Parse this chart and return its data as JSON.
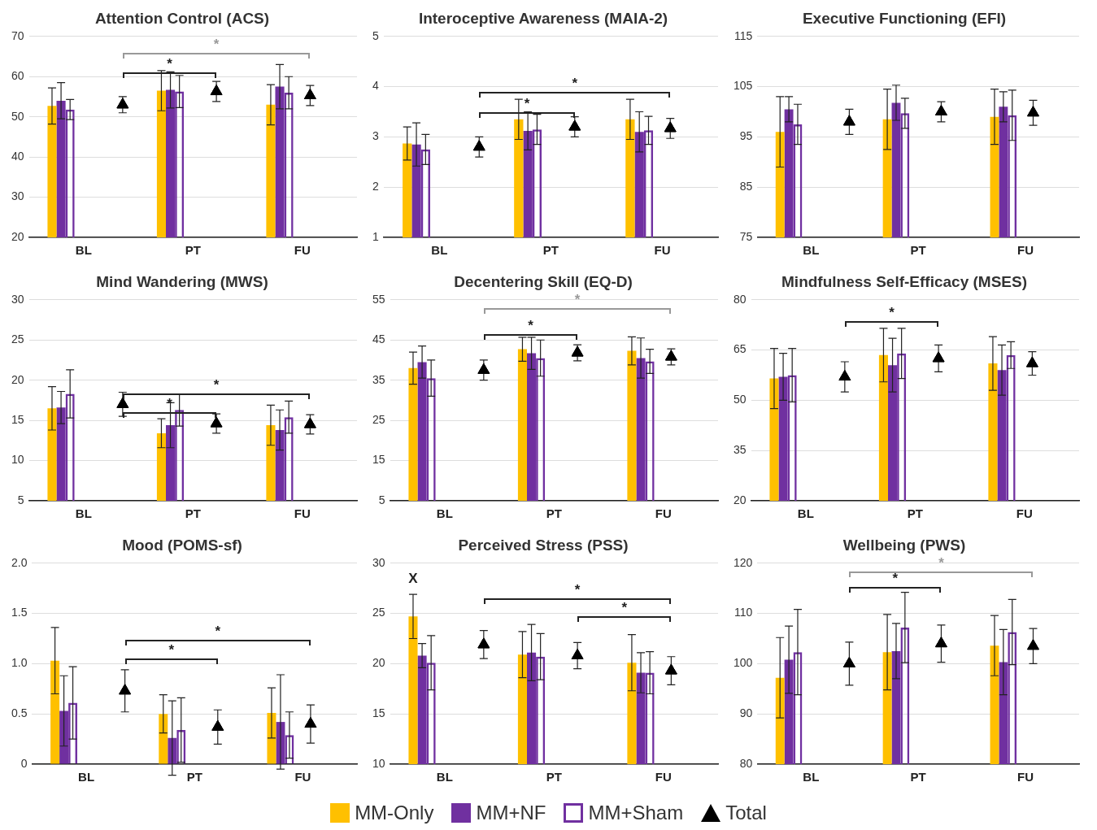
{
  "chart_data": [
    {
      "type": "bar",
      "title": "Attention Control (ACS)",
      "categories": [
        "BL",
        "PT",
        "FU"
      ],
      "ylim": [
        20,
        70
      ],
      "yticks": [
        20,
        30,
        40,
        50,
        60,
        70
      ],
      "grid": "y",
      "series": [
        {
          "color": "#ffc000",
          "values": [
            52.7,
            56.5,
            53
          ],
          "errors": [
            4.5,
            5,
            5
          ]
        },
        {
          "color": "#7030a0",
          "values": [
            54,
            56.7,
            57.5
          ],
          "errors": [
            4.5,
            4.5,
            5.5
          ]
        },
        {
          "color": "#7030a0",
          "values": [
            51.8,
            56.3,
            56
          ],
          "errors": [
            2.5,
            4,
            4
          ]
        },
        {
          "type": "scatter",
          "marker": "triangle",
          "color": "#000000",
          "values": [
            53,
            56.3,
            55.3
          ],
          "errors": [
            2,
            2.5,
            2.5
          ]
        }
      ],
      "annotations": [
        "*",
        "*"
      ]
    },
    {
      "type": "bar",
      "title": "Interoceptive Awareness (MAIA-2)",
      "categories": [
        "BL",
        "PT",
        "FU"
      ],
      "ylim": [
        1,
        5
      ],
      "yticks": [
        1,
        2,
        3,
        4,
        5
      ],
      "grid": "y",
      "series": [
        {
          "color": "#ffc000",
          "values": [
            2.87,
            3.35,
            3.35
          ],
          "errors": [
            0.33,
            0.4,
            0.4
          ]
        },
        {
          "color": "#7030a0",
          "values": [
            2.85,
            3.12,
            3.1
          ],
          "errors": [
            0.43,
            0.38,
            0.4
          ]
        },
        {
          "color": "#7030a0",
          "values": [
            2.75,
            3.15,
            3.13
          ],
          "errors": [
            0.3,
            0.3,
            0.28
          ]
        },
        {
          "type": "scatter",
          "marker": "triangle",
          "color": "#000000",
          "values": [
            2.8,
            3.2,
            3.17
          ],
          "errors": [
            0.2,
            0.2,
            0.2
          ]
        }
      ],
      "annotations": [
        "*",
        "*"
      ]
    },
    {
      "type": "bar",
      "title": "Executive Functioning (EFI)",
      "categories": [
        "BL",
        "PT",
        "FU"
      ],
      "ylim": [
        75,
        115
      ],
      "yticks": [
        75,
        85,
        95,
        105,
        115
      ],
      "grid": "y",
      "series": [
        {
          "color": "#ffc000",
          "values": [
            96,
            98.5,
            99
          ],
          "errors": [
            7,
            6,
            5.5
          ]
        },
        {
          "color": "#7030a0",
          "values": [
            100.5,
            101.8,
            101
          ],
          "errors": [
            2.5,
            3.5,
            3
          ]
        },
        {
          "color": "#7030a0",
          "values": [
            97.5,
            99.7,
            99.3
          ],
          "errors": [
            4,
            3,
            5
          ]
        },
        {
          "type": "scatter",
          "marker": "triangle",
          "color": "#000000",
          "values": [
            98,
            100,
            99.8
          ],
          "errors": [
            2.5,
            2,
            2.5
          ]
        }
      ]
    },
    {
      "type": "bar",
      "title": "Mind Wandering (MWS)",
      "categories": [
        "BL",
        "PT",
        "FU"
      ],
      "ylim": [
        5,
        30
      ],
      "yticks": [
        5,
        10,
        15,
        20,
        25,
        30
      ],
      "grid": "y",
      "series": [
        {
          "color": "#ffc000",
          "values": [
            16.5,
            13.4,
            14.4
          ],
          "errors": [
            2.7,
            1.8,
            2.5
          ]
        },
        {
          "color": "#7030a0",
          "values": [
            16.6,
            14.4,
            13.8
          ],
          "errors": [
            2,
            2.8,
            2.5
          ]
        },
        {
          "color": "#7030a0",
          "values": [
            18.3,
            16.3,
            15.4
          ],
          "errors": [
            3,
            2,
            2
          ]
        },
        {
          "type": "scatter",
          "marker": "triangle",
          "color": "#000000",
          "values": [
            17,
            14.6,
            14.5
          ],
          "errors": [
            1.5,
            1.2,
            1.2
          ]
        }
      ],
      "annotations": [
        "*",
        "*"
      ]
    },
    {
      "type": "bar",
      "title": "Decentering Skill (EQ-D)",
      "categories": [
        "BL",
        "PT",
        "FU"
      ],
      "ylim": [
        5,
        55
      ],
      "yticks": [
        5,
        15,
        25,
        35,
        45,
        55
      ],
      "grid": "y",
      "series": [
        {
          "color": "#ffc000",
          "values": [
            38,
            42.7,
            42.3
          ],
          "errors": [
            4,
            3,
            3.5
          ]
        },
        {
          "color": "#7030a0",
          "values": [
            39.5,
            41.7,
            40.5
          ],
          "errors": [
            4,
            4,
            5
          ]
        },
        {
          "color": "#7030a0",
          "values": [
            35.5,
            40.5,
            39.7
          ],
          "errors": [
            4.5,
            4.5,
            3
          ]
        },
        {
          "type": "scatter",
          "marker": "triangle",
          "color": "#000000",
          "values": [
            37.5,
            41.8,
            40.8
          ],
          "errors": [
            2.5,
            2,
            2
          ]
        }
      ],
      "annotations": [
        "*",
        "*"
      ]
    },
    {
      "type": "bar",
      "title": "Mindfulness Self-Efficacy (MSES)",
      "categories": [
        "BL",
        "PT",
        "FU"
      ],
      "ylim": [
        20,
        80
      ],
      "yticks": [
        20,
        35,
        50,
        65,
        80
      ],
      "grid": "y",
      "series": [
        {
          "color": "#ffc000",
          "values": [
            56.5,
            63.5,
            61
          ],
          "errors": [
            9,
            8,
            8
          ]
        },
        {
          "color": "#7030a0",
          "values": [
            57,
            60.5,
            59
          ],
          "errors": [
            7,
            8,
            7.5
          ]
        },
        {
          "color": "#7030a0",
          "values": [
            57.5,
            64,
            63.5
          ],
          "errors": [
            8,
            7.5,
            4
          ]
        },
        {
          "type": "scatter",
          "marker": "triangle",
          "color": "#000000",
          "values": [
            57,
            62.5,
            61
          ],
          "errors": [
            4.5,
            4,
            3.5
          ]
        }
      ],
      "annotations": [
        "*"
      ]
    },
    {
      "type": "bar",
      "title": "Mood (POMS-sf)",
      "categories": [
        "BL",
        "PT",
        "FU"
      ],
      "ylim": [
        0,
        2
      ],
      "yticks": [
        0,
        0.5,
        {
          "value": 1,
          "label": "1.0"
        },
        1.5,
        {
          "value": 2,
          "label": "2.0"
        }
      ],
      "grid": "y",
      "series": [
        {
          "color": "#ffc000",
          "values": [
            1.03,
            0.5,
            0.51
          ],
          "errors": [
            0.33,
            0.19,
            0.25
          ]
        },
        {
          "color": "#7030a0",
          "values": [
            0.53,
            0.26,
            0.42
          ],
          "errors": [
            0.35,
            0.37,
            0.47
          ]
        },
        {
          "color": "#7030a0",
          "values": [
            0.61,
            0.34,
            0.29
          ],
          "errors": [
            0.36,
            0.32,
            0.23
          ]
        },
        {
          "type": "scatter",
          "marker": "triangle",
          "color": "#000000",
          "values": [
            0.73,
            0.37,
            0.4
          ],
          "errors": [
            0.21,
            0.17,
            0.19
          ]
        }
      ],
      "annotations": [
        "*",
        "*"
      ]
    },
    {
      "type": "bar",
      "title": "Perceived Stress (PSS)",
      "categories": [
        "BL",
        "PT",
        "FU"
      ],
      "ylim": [
        10,
        30
      ],
      "yticks": [
        10,
        15,
        20,
        25,
        30
      ],
      "grid": "y",
      "series": [
        {
          "color": "#ffc000",
          "values": [
            24.7,
            20.9,
            20.1
          ],
          "errors": [
            2.2,
            2.3,
            2.8
          ]
        },
        {
          "color": "#7030a0",
          "values": [
            20.8,
            21.1,
            19.1
          ],
          "errors": [
            1.2,
            2.8,
            2
          ]
        },
        {
          "color": "#7030a0",
          "values": [
            20.1,
            20.7,
            19.1
          ],
          "errors": [
            2.7,
            2.3,
            2.1
          ]
        },
        {
          "type": "scatter",
          "marker": "triangle",
          "color": "#000000",
          "values": [
            21.9,
            20.8,
            19.3
          ],
          "errors": [
            1.4,
            1.3,
            1.4
          ]
        }
      ],
      "annotations": [
        "X",
        "*",
        "*"
      ]
    },
    {
      "type": "bar",
      "title": "Wellbeing (PWS)",
      "categories": [
        "BL",
        "PT",
        "FU"
      ],
      "ylim": [
        80,
        120
      ],
      "yticks": [
        80,
        90,
        100,
        110,
        120
      ],
      "grid": "y",
      "legend": "bottom",
      "series": [
        {
          "name": "MM-Only",
          "color": "#ffc000",
          "values": [
            97.2,
            102.3,
            103.6
          ],
          "errors": [
            8,
            7.5,
            6
          ]
        },
        {
          "name": "MM+NF",
          "color": "#7030a0",
          "values": [
            100.8,
            102.5,
            100.3
          ],
          "errors": [
            6.7,
            5.5,
            6.5
          ]
        },
        {
          "name": "MM+Sham",
          "color": "#7030a0",
          "values": [
            102.3,
            107.2,
            106.3
          ],
          "errors": [
            8.5,
            7,
            6.5
          ]
        },
        {
          "name": "Total",
          "type": "scatter",
          "marker": "triangle",
          "color": "#000000",
          "values": [
            100,
            104,
            103.5
          ],
          "errors": [
            4.3,
            3.7,
            3.5
          ]
        }
      ],
      "annotations": [
        "*",
        "*"
      ]
    }
  ]
}
